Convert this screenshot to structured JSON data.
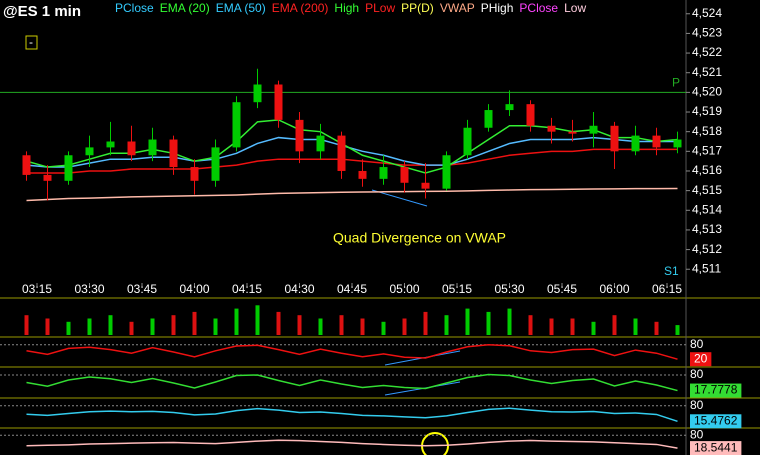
{
  "chart_data": {
    "type": "candlestick",
    "title": "@ES 1 min",
    "legend": [
      {
        "name": "PClose",
        "color": "#33ccff"
      },
      {
        "name": "EMA (20)",
        "color": "#33ff33"
      },
      {
        "name": "EMA (50)",
        "color": "#33ccff"
      },
      {
        "name": "EMA (200)",
        "color": "#ff2222"
      },
      {
        "name": "High",
        "color": "#33ff33"
      },
      {
        "name": "PLow",
        "color": "#ff2222"
      },
      {
        "name": "PP(D)",
        "color": "#ffff55"
      },
      {
        "name": "VWAP",
        "color": "#ffaa88"
      },
      {
        "name": "PHigh",
        "color": "#ffffff"
      },
      {
        "name": "PClose",
        "color": "#ff44ff"
      },
      {
        "name": "Low",
        "color": "#ffccdd"
      }
    ],
    "x": [
      "03:12",
      "03:18",
      "03:24",
      "03:30",
      "03:36",
      "03:42",
      "03:48",
      "03:54",
      "04:00",
      "04:06",
      "04:12",
      "04:18",
      "04:24",
      "04:30",
      "04:36",
      "04:42",
      "04:48",
      "04:54",
      "05:00",
      "05:06",
      "05:12",
      "05:18",
      "05:24",
      "05:30",
      "05:36",
      "05:42",
      "05:48",
      "05:54",
      "06:00",
      "06:06",
      "06:12",
      "06:18"
    ],
    "xticks": [
      "03:15",
      "03:30",
      "03:45",
      "04:00",
      "04:15",
      "04:30",
      "04:45",
      "05:00",
      "05:15",
      "05:30",
      "05:45",
      "06:00",
      "06:15"
    ],
    "open": [
      4516.8,
      4515.8,
      4515.5,
      4516.8,
      4517.2,
      4517.5,
      4516.8,
      4517.6,
      4516.2,
      4515.5,
      4517.2,
      4519.5,
      4520.4,
      4518.6,
      4517,
      4517.8,
      4516,
      4515.6,
      4516.2,
      4515.4,
      4515.1,
      4516.8,
      4518.2,
      4519.1,
      4519.4,
      4518.3,
      4518,
      4517.9,
      4518.3,
      4517,
      4517.8,
      4517.2
    ],
    "high": [
      4517,
      4516.3,
      4517,
      4517.8,
      4518.5,
      4518.3,
      4518.2,
      4517.8,
      4516.6,
      4517.6,
      4519.8,
      4521.2,
      4520.6,
      4519,
      4518.4,
      4518,
      4516.6,
      4516.8,
      4516.5,
      4516.4,
      4517,
      4518.6,
      4519.4,
      4520.1,
      4519.6,
      4518.7,
      4518.6,
      4519,
      4518.5,
      4518.3,
      4518.2,
      4518
    ],
    "low": [
      4515.5,
      4514.5,
      4515.3,
      4516.2,
      4516.8,
      4516.5,
      4516.5,
      4515.8,
      4514.8,
      4515.2,
      4517,
      4519.2,
      4518.2,
      4516.4,
      4516.6,
      4515.6,
      4515.2,
      4515.3,
      4514.9,
      4514.6,
      4515,
      4516.6,
      4518,
      4518.8,
      4518,
      4517.4,
      4517.5,
      4517.2,
      4516.1,
      4516.8,
      4516.8,
      4516.9
    ],
    "close": [
      4515.8,
      4515.5,
      4516.8,
      4517.2,
      4517.5,
      4516.8,
      4517.6,
      4516.2,
      4515.5,
      4517.2,
      4519.5,
      4520.4,
      4518.6,
      4517,
      4517.8,
      4516,
      4515.6,
      4516.2,
      4515.4,
      4515.1,
      4516.8,
      4518.2,
      4519.1,
      4519.4,
      4518.3,
      4518,
      4517.9,
      4518.3,
      4517,
      4517.8,
      4517.2,
      4517.6
    ],
    "up_color": "#00cc00",
    "down_color": "#ee1111",
    "series": [
      {
        "color": "#ffbbaa",
        "values": [
          4514.5,
          4514.55,
          4514.6,
          4514.62,
          4514.65,
          4514.68,
          4514.7,
          4514.72,
          4514.74,
          4514.76,
          4514.78,
          4514.82,
          4514.86,
          4514.88,
          4514.9,
          4514.92,
          4514.93,
          4514.94,
          4514.95,
          4514.96,
          4514.97,
          4514.99,
          4515.01,
          4515.03,
          4515.05,
          4515.06,
          4515.07,
          4515.08,
          4515.09,
          4515.1,
          4515.1,
          4515.11
        ]
      },
      {
        "color": "#ee1111",
        "values": [
          4515.9,
          4515.9,
          4515.9,
          4516,
          4516,
          4516.1,
          4516.1,
          4516.1,
          4516.1,
          4516.2,
          4516.3,
          4516.5,
          4516.6,
          4516.6,
          4516.6,
          4516.6,
          4516.5,
          4516.4,
          4516.3,
          4516.3,
          4516.3,
          4516.4,
          4516.6,
          4516.8,
          4516.9,
          4517,
          4517,
          4517.1,
          4517.1,
          4517.1,
          4517.1,
          4517.1
        ]
      },
      {
        "color": "#55bbff",
        "values": [
          4516.3,
          4516.2,
          4516.2,
          4516.4,
          4516.6,
          4516.6,
          4516.7,
          4516.7,
          4516.5,
          4516.6,
          4516.9,
          4517.4,
          4517.7,
          4517.6,
          4517.6,
          4517.3,
          4517,
          4516.8,
          4516.5,
          4516.3,
          4516.3,
          4516.6,
          4517,
          4517.4,
          4517.6,
          4517.6,
          4517.6,
          4517.7,
          4517.6,
          4517.5,
          4517.5,
          4517.5
        ]
      },
      {
        "color": "#33ee33",
        "values": [
          4516.5,
          4516.2,
          4516.3,
          4516.6,
          4516.9,
          4516.9,
          4517.1,
          4516.9,
          4516.5,
          4516.7,
          4517.5,
          4518.5,
          4518.6,
          4518.1,
          4518,
          4517.4,
          4516.8,
          4516.5,
          4516.2,
          4515.9,
          4516.2,
          4516.9,
          4517.6,
          4518.3,
          4518.3,
          4518.2,
          4518,
          4518.1,
          4517.7,
          4517.7,
          4517.5,
          4517.6
        ]
      }
    ],
    "ylim": [
      4510.3,
      4524.7
    ],
    "yticks": [
      {
        "value": 4511,
        "label": "4,511"
      },
      {
        "value": 4512,
        "label": "4,512"
      },
      {
        "value": 4513,
        "label": "4,513"
      },
      {
        "value": 4514,
        "label": "4,514"
      },
      {
        "value": 4515,
        "label": "4,515"
      },
      {
        "value": 4516,
        "label": "4,516"
      },
      {
        "value": 4517,
        "label": "4,517"
      },
      {
        "value": 4518,
        "label": "4,518"
      },
      {
        "value": 4519,
        "label": "4,519"
      },
      {
        "value": 4520,
        "label": "4,520"
      },
      {
        "value": 4521,
        "label": "4,521"
      },
      {
        "value": 4522,
        "label": "4,522"
      },
      {
        "value": 4523,
        "label": "4,523"
      },
      {
        "value": 4524,
        "label": "4,524"
      }
    ],
    "levels": [
      {
        "label": "P",
        "value": 4520,
        "color": "#22aa22"
      }
    ],
    "annotations": [
      "Quad Divergence on VWAP",
      "S1"
    ],
    "volume": {
      "color": "#dd1111",
      "ylim": [
        0,
        10
      ],
      "values": [
        6,
        5,
        4,
        5,
        6,
        4,
        5,
        6,
        7,
        5,
        8,
        9,
        7,
        6,
        5,
        6,
        5,
        4,
        5,
        7,
        6,
        8,
        7,
        8,
        6,
        5,
        5,
        4,
        6,
        5,
        4,
        3
      ]
    },
    "oscillators": [
      {
        "color": "#ee1111",
        "ylim": [
          0,
          100
        ],
        "yticks": [
          80
        ],
        "values": [
          55,
          40,
          65,
          70,
          60,
          45,
          68,
          50,
          30,
          55,
          75,
          78,
          60,
          40,
          62,
          45,
          30,
          42,
          28,
          25,
          50,
          72,
          80,
          76,
          55,
          48,
          60,
          62,
          35,
          58,
          45,
          20
        ],
        "value_label": "20"
      },
      {
        "color": "#33dd33",
        "ylim": [
          0,
          100
        ],
        "yticks": [
          80
        ],
        "values": [
          50,
          35,
          60,
          72,
          65,
          50,
          66,
          48,
          28,
          52,
          78,
          80,
          58,
          38,
          60,
          44,
          30,
          38,
          30,
          26,
          48,
          70,
          82,
          78,
          60,
          46,
          58,
          64,
          36,
          56,
          40,
          17.7778
        ],
        "value_label": "17.7778"
      },
      {
        "color": "#33ccee",
        "ylim": [
          0,
          100
        ],
        "yticks": [
          80
        ],
        "values": [
          45,
          40,
          48,
          55,
          58,
          55,
          57,
          52,
          42,
          46,
          60,
          68,
          62,
          52,
          54,
          48,
          40,
          38,
          34,
          30,
          38,
          52,
          65,
          70,
          62,
          55,
          54,
          56,
          48,
          50,
          44,
          15.4762
        ],
        "value_label": "15.4762"
      },
      {
        "color": "#ffbbbb",
        "ylim": [
          0,
          100
        ],
        "yticks": [
          80
        ],
        "values": [
          30,
          32,
          34,
          38,
          40,
          42,
          44,
          45,
          42,
          40,
          46,
          52,
          56,
          54,
          50,
          46,
          40,
          36,
          32,
          30,
          32,
          38,
          46,
          52,
          55,
          52,
          50,
          48,
          44,
          40,
          36,
          18.5441
        ],
        "value_label": "18.5441"
      }
    ]
  }
}
